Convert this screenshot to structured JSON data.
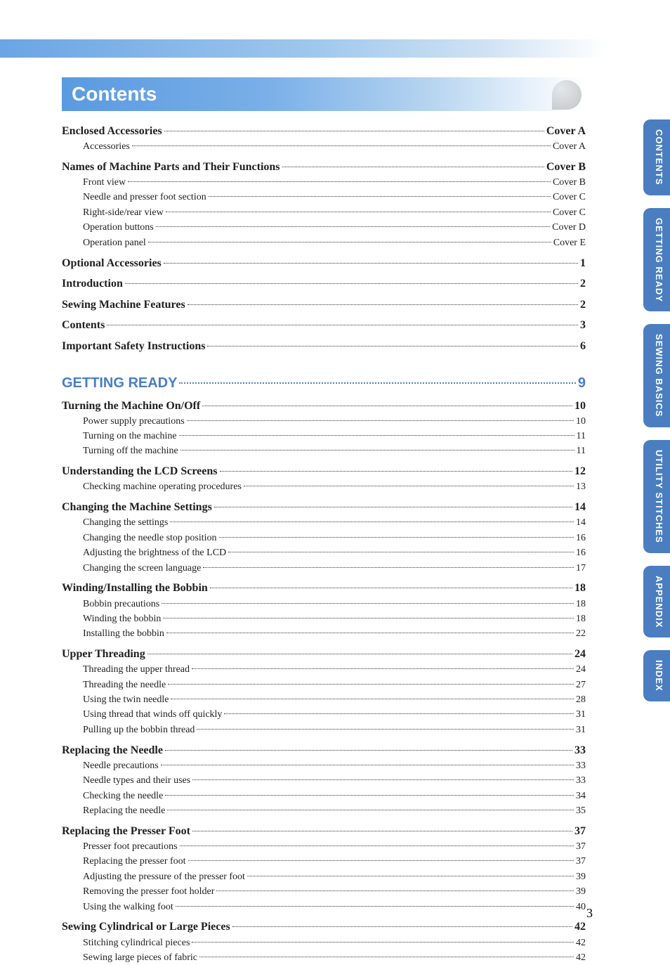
{
  "page_number": "3",
  "contents_title": "Contents",
  "sections": [
    {
      "type": "group",
      "items": [
        {
          "lvl": 1,
          "label": "Enclosed Accessories",
          "page": "Cover A"
        },
        {
          "lvl": 2,
          "label": "Accessories",
          "page": "Cover A"
        },
        {
          "lvl": 1,
          "label": "Names of Machine Parts and Their Functions",
          "page": "Cover B"
        },
        {
          "lvl": 2,
          "label": "Front view",
          "page": "Cover B"
        },
        {
          "lvl": 2,
          "label": "Needle and presser foot section",
          "page": "Cover C"
        },
        {
          "lvl": 2,
          "label": "Right-side/rear view",
          "page": "Cover C"
        },
        {
          "lvl": 2,
          "label": "Operation buttons",
          "page": "Cover D"
        },
        {
          "lvl": 2,
          "label": "Operation panel",
          "page": "Cover E"
        },
        {
          "lvl": 1,
          "label": "Optional Accessories",
          "page": "1"
        },
        {
          "lvl": 1,
          "label": "Introduction",
          "page": "2"
        },
        {
          "lvl": 1,
          "label": "Sewing Machine Features",
          "page": "2"
        },
        {
          "lvl": 1,
          "label": "Contents",
          "page": "3"
        },
        {
          "lvl": 1,
          "label": "Important Safety Instructions",
          "page": "6"
        }
      ]
    },
    {
      "type": "head",
      "label": "GETTING READY",
      "page": "9"
    },
    {
      "type": "group",
      "items": [
        {
          "lvl": 1,
          "label": "Turning the Machine On/Off",
          "page": "10"
        },
        {
          "lvl": 2,
          "label": "Power supply precautions",
          "page": "10"
        },
        {
          "lvl": 2,
          "label": "Turning on the machine",
          "page": "11"
        },
        {
          "lvl": 2,
          "label": "Turning off the machine",
          "page": "11"
        },
        {
          "lvl": 1,
          "label": "Understanding the LCD Screens",
          "page": "12"
        },
        {
          "lvl": 2,
          "label": "Checking machine operating procedures",
          "page": "13"
        },
        {
          "lvl": 1,
          "label": "Changing the Machine Settings",
          "page": "14"
        },
        {
          "lvl": 2,
          "label": "Changing the settings",
          "page": "14"
        },
        {
          "lvl": 2,
          "label": "Changing the needle stop position",
          "page": "16"
        },
        {
          "lvl": 2,
          "label": "Adjusting the brightness of the LCD",
          "page": "16"
        },
        {
          "lvl": 2,
          "label": "Changing the screen language",
          "page": "17"
        },
        {
          "lvl": 1,
          "label": "Winding/Installing the Bobbin",
          "page": "18"
        },
        {
          "lvl": 2,
          "label": "Bobbin precautions",
          "page": "18"
        },
        {
          "lvl": 2,
          "label": "Winding the bobbin",
          "page": "18"
        },
        {
          "lvl": 2,
          "label": "Installing the bobbin",
          "page": "22"
        },
        {
          "lvl": 1,
          "label": "Upper Threading",
          "page": "24"
        },
        {
          "lvl": 2,
          "label": "Threading the upper thread",
          "page": "24"
        },
        {
          "lvl": 2,
          "label": "Threading the needle",
          "page": "27"
        },
        {
          "lvl": 2,
          "label": "Using the twin needle",
          "page": "28"
        },
        {
          "lvl": 2,
          "label": "Using thread that winds off quickly",
          "page": "31"
        },
        {
          "lvl": 2,
          "label": "Pulling up the bobbin thread",
          "page": "31"
        },
        {
          "lvl": 1,
          "label": "Replacing the Needle",
          "page": "33"
        },
        {
          "lvl": 2,
          "label": "Needle precautions",
          "page": "33"
        },
        {
          "lvl": 2,
          "label": "Needle types and their uses",
          "page": "33"
        },
        {
          "lvl": 2,
          "label": "Checking the needle",
          "page": "34"
        },
        {
          "lvl": 2,
          "label": "Replacing the needle",
          "page": "35"
        },
        {
          "lvl": 1,
          "label": "Replacing the Presser Foot",
          "page": "37"
        },
        {
          "lvl": 2,
          "label": "Presser foot precautions",
          "page": "37"
        },
        {
          "lvl": 2,
          "label": "Replacing the presser foot",
          "page": "37"
        },
        {
          "lvl": 2,
          "label": "Adjusting the pressure of the presser foot",
          "page": "39"
        },
        {
          "lvl": 2,
          "label": "Removing the presser foot holder",
          "page": "39"
        },
        {
          "lvl": 2,
          "label": "Using the walking foot",
          "page": "40"
        },
        {
          "lvl": 1,
          "label": "Sewing Cylindrical or Large Pieces",
          "page": "42"
        },
        {
          "lvl": 2,
          "label": "Stitching cylindrical pieces",
          "page": "42"
        },
        {
          "lvl": 2,
          "label": "Sewing large pieces of fabric",
          "page": "42"
        }
      ]
    }
  ],
  "tabs": [
    {
      "label": "CONTENTS"
    },
    {
      "label": "GETTING READY"
    },
    {
      "label": "SEWING BASICS"
    },
    {
      "label": "UTILITY STITCHES"
    },
    {
      "label": "APPENDIX"
    },
    {
      "label": "INDEX"
    }
  ],
  "colors": {
    "accent": "#4a7ec1",
    "tab_bg": "#4a7ec1",
    "tab_text": "#ffffff",
    "title_text": "#ffffff",
    "body_text": "#202020"
  },
  "typography": {
    "title_fontsize": 28,
    "section_head_fontsize": 20,
    "lvl1_fontsize": 16,
    "lvl2_fontsize": 14,
    "tab_fontsize": 13
  }
}
